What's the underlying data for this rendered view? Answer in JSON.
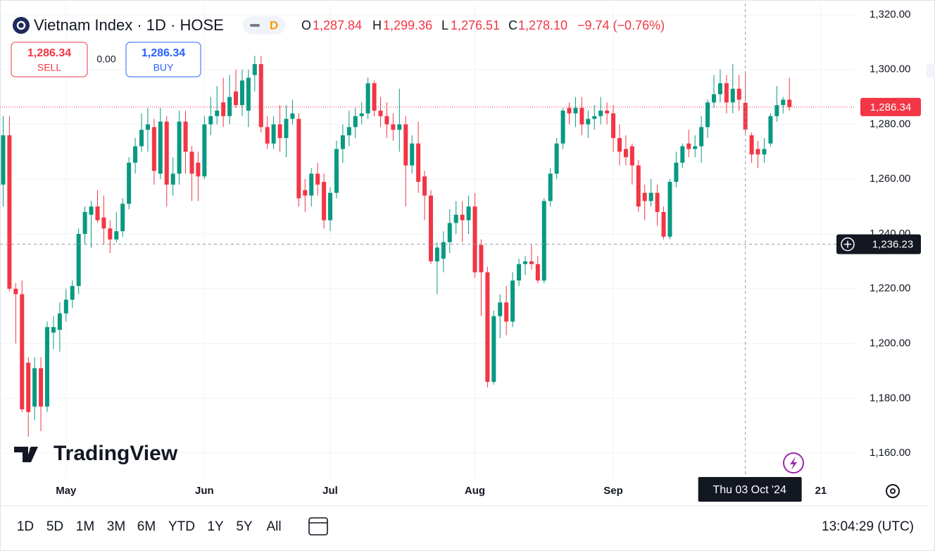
{
  "header": {
    "title": "Vietnam Index · 1D · HOSE",
    "interval_badge": "D",
    "ohlc": {
      "open_label": "O",
      "open": "1,287.84",
      "high_label": "H",
      "high": "1,299.36",
      "low_label": "L",
      "low": "1,276.51",
      "close_label": "C",
      "close": "1,278.10",
      "change": "−9.74 (−0.76%)"
    },
    "sell": {
      "price": "1,286.34",
      "label": "SELL"
    },
    "spread": "0.00",
    "buy": {
      "price": "1,286.34",
      "label": "BUY"
    }
  },
  "logo": "TradingView",
  "chart_data": {
    "type": "candlestick",
    "open": [
      1258,
      1276,
      1220,
      1218,
      1193,
      1177,
      1191,
      1177,
      1204,
      1205,
      1211,
      1216,
      1221,
      1240,
      1247,
      1250,
      1246,
      1242,
      1238,
      1241,
      1251,
      1266,
      1272,
      1278,
      1279,
      1262,
      1281,
      1258,
      1262,
      1281,
      1270,
      1266,
      1261,
      1280,
      1283,
      1288,
      1283,
      1292,
      1287,
      1285,
      1298,
      1302,
      1279,
      1273,
      1280,
      1275,
      1282,
      1282,
      1256,
      1254,
      1262,
      1259,
      1245,
      1255,
      1271,
      1276,
      1279,
      1283,
      1284,
      1295,
      1285,
      1283,
      1280,
      1278,
      1280,
      1265,
      1273,
      1261,
      1254,
      1230,
      1231,
      1237,
      1244,
      1247,
      1245,
      1250,
      1236,
      1226,
      1186,
      1210,
      1215,
      1208,
      1223,
      1229,
      1230,
      1229,
      1223,
      1252,
      1262,
      1273,
      1286,
      1284,
      1286,
      1280,
      1282,
      1283,
      1285,
      1284,
      1275,
      1271,
      1272,
      1265,
      1255,
      1252,
      1255,
      1248,
      1239,
      1259,
      1266,
      1273,
      1271,
      1272,
      1279,
      1288,
      1291,
      1295,
      1288,
      1293,
      1287.84,
      1276,
      1271,
      1269,
      1273,
      1283,
      1287,
      1289
    ],
    "high": [
      1283,
      1283,
      1222,
      1223,
      1195,
      1195,
      1195,
      1208,
      1210,
      1215,
      1220,
      1223,
      1242,
      1250,
      1252,
      1256,
      1254,
      1245,
      1248,
      1253,
      1268,
      1275,
      1284,
      1286,
      1282,
      1286,
      1283,
      1268,
      1285,
      1285,
      1272,
      1270,
      1283,
      1290,
      1294,
      1297,
      1298,
      1300,
      1300,
      1300,
      1305,
      1305,
      1283,
      1283,
      1287,
      1287,
      1289,
      1284,
      1260,
      1264,
      1266,
      1262,
      1257,
      1274,
      1280,
      1285,
      1286,
      1288,
      1297,
      1296,
      1290,
      1288,
      1284,
      1293,
      1283,
      1276,
      1281,
      1263,
      1256,
      1237,
      1241,
      1249,
      1252,
      1252,
      1254,
      1255,
      1238,
      1228,
      1212,
      1218,
      1221,
      1226,
      1231,
      1232,
      1236,
      1232,
      1253,
      1264,
      1275,
      1286,
      1288,
      1290,
      1290,
      1285,
      1287,
      1290,
      1288,
      1287,
      1280,
      1276,
      1273,
      1267,
      1258,
      1260,
      1258,
      1250,
      1260,
      1270,
      1273,
      1278,
      1276,
      1283,
      1289,
      1298,
      1300,
      1298,
      1302,
      1298,
      1299.36,
      1277,
      1274,
      1275,
      1284,
      1294,
      1290,
      1297
    ],
    "low": [
      1250,
      1219,
      1200,
      1175,
      1166,
      1172,
      1168,
      1175,
      1198,
      1197,
      1208,
      1213,
      1218,
      1236,
      1235,
      1244,
      1236,
      1233,
      1237,
      1239,
      1249,
      1262,
      1270,
      1270,
      1258,
      1260,
      1250,
      1254,
      1258,
      1262,
      1252,
      1252,
      1260,
      1276,
      1280,
      1279,
      1280,
      1286,
      1283,
      1279,
      1292,
      1277,
      1271,
      1271,
      1270,
      1268,
      1280,
      1250,
      1248,
      1250,
      1254,
      1242,
      1241,
      1253,
      1266,
      1272,
      1275,
      1280,
      1282,
      1283,
      1279,
      1275,
      1274,
      1270,
      1250,
      1262,
      1255,
      1245,
      1229,
      1218,
      1226,
      1233,
      1240,
      1237,
      1240,
      1224,
      1210,
      1184,
      1185,
      1202,
      1203,
      1206,
      1221,
      1225,
      1227,
      1222,
      1222,
      1250,
      1260,
      1271,
      1280,
      1279,
      1276,
      1275,
      1278,
      1280,
      1280,
      1270,
      1265,
      1265,
      1258,
      1248,
      1245,
      1250,
      1243,
      1238,
      1238,
      1257,
      1264,
      1268,
      1268,
      1266,
      1275,
      1286,
      1288,
      1284,
      1284,
      1285,
      1276.51,
      1266,
      1264,
      1266,
      1272,
      1281,
      1284,
      1285
    ],
    "close": [
      1276,
      1220,
      1218,
      1176,
      1175,
      1191,
      1177,
      1206,
      1206,
      1211,
      1216,
      1221,
      1240,
      1248,
      1250,
      1245,
      1242,
      1238,
      1241,
      1251,
      1266,
      1272,
      1278,
      1280,
      1263,
      1281,
      1258,
      1262,
      1281,
      1270,
      1262,
      1261,
      1280,
      1283,
      1285,
      1283,
      1290,
      1287,
      1296,
      1297,
      1302,
      1279,
      1273,
      1280,
      1275,
      1282,
      1284,
      1253,
      1254,
      1262,
      1258,
      1245,
      1255,
      1271,
      1276,
      1279,
      1283,
      1284,
      1295,
      1285,
      1283,
      1280,
      1278,
      1280,
      1265,
      1273,
      1259,
      1254,
      1230,
      1235,
      1237,
      1244,
      1247,
      1245,
      1250,
      1226,
      1226,
      1186,
      1210,
      1215,
      1208,
      1223,
      1229,
      1230,
      1229,
      1223,
      1252,
      1262,
      1273,
      1285,
      1284,
      1286,
      1280,
      1282,
      1283,
      1285,
      1284,
      1275,
      1270,
      1268,
      1265,
      1250,
      1252,
      1255,
      1248,
      1239,
      1259,
      1266,
      1272,
      1271,
      1272,
      1279,
      1288,
      1291,
      1295,
      1288,
      1293,
      1289,
      1278.1,
      1269,
      1269,
      1271,
      1283,
      1287,
      1289,
      1286.34
    ],
    "up_color": "#089981",
    "down_color": "#f23645",
    "xlim": [
      -0.5,
      135.5
    ],
    "xticks": [
      {
        "value": 10,
        "label": "May"
      },
      {
        "value": 32,
        "label": "Jun"
      },
      {
        "value": 52,
        "label": "Jul"
      },
      {
        "value": 75,
        "label": "Aug"
      },
      {
        "value": 97,
        "label": "Sep"
      },
      {
        "value": 130,
        "label": "21"
      }
    ],
    "ylim": [
      1150.5,
      1324.1
    ],
    "yticks": [
      {
        "value": 1160,
        "label": "1,160.00"
      },
      {
        "value": 1180,
        "label": "1,180.00"
      },
      {
        "value": 1200,
        "label": "1,200.00"
      },
      {
        "value": 1220,
        "label": "1,220.00"
      },
      {
        "value": 1240,
        "label": "1,240.00"
      },
      {
        "value": 1260,
        "label": "1,260.00"
      },
      {
        "value": 1280,
        "label": "1,280.00"
      },
      {
        "value": 1300,
        "label": "1,300.00"
      },
      {
        "value": 1320,
        "label": "1,320.00"
      }
    ],
    "grid": true,
    "last_price": {
      "value": 1286.34,
      "label": "1,286.34"
    },
    "crosshair": {
      "x": 118,
      "x_label": "Thu 03 Oct '24",
      "y": 1236.23,
      "y_label": "1,236.23"
    }
  },
  "toolbar": {
    "ranges": [
      "1D",
      "5D",
      "1M",
      "3M",
      "6M",
      "YTD",
      "1Y",
      "5Y",
      "All"
    ],
    "time": "13:04:29 (UTC)"
  }
}
